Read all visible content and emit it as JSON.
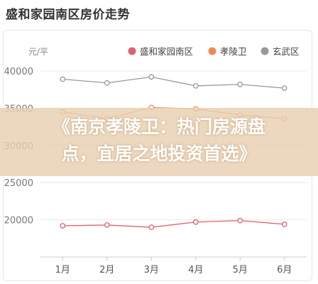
{
  "page": {
    "title": "盛和家园南区房价走势"
  },
  "overlay": {
    "line1": "《南京孝陵卫：热门房源盘",
    "line2": "点，宜居之地投资首选》"
  },
  "chart_data": {
    "type": "line",
    "title": "",
    "xlabel": "",
    "ylabel": "元/平",
    "categories": [
      "1月",
      "2月",
      "3月",
      "4月",
      "5月",
      "6月"
    ],
    "ylim": [
      15000,
      40000
    ],
    "yticks": [
      40000,
      35000,
      30000,
      25000,
      20000
    ],
    "grid": true,
    "legend_position": "top-right",
    "series": [
      {
        "name": "盛和家园南区",
        "color": "#e06070",
        "values": [
          19200,
          19300,
          19000,
          19700,
          19900,
          19400
        ]
      },
      {
        "name": "孝陵卫",
        "color": "#f08a50",
        "values": [
          34500,
          33600,
          35100,
          34900,
          34100,
          33600
        ]
      },
      {
        "name": "玄武区",
        "color": "#999999",
        "values": [
          38900,
          38400,
          39200,
          38000,
          38200,
          37700
        ]
      }
    ]
  }
}
